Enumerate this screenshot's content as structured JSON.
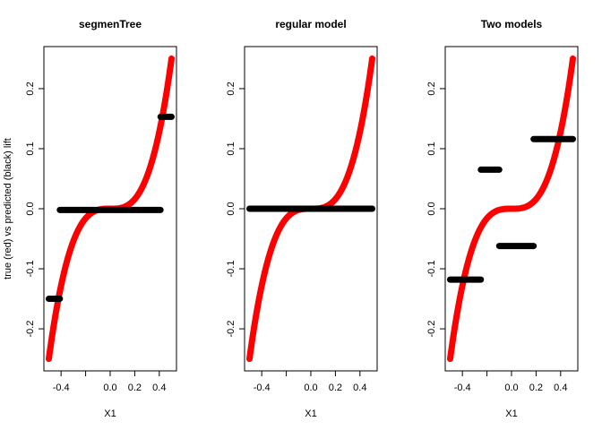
{
  "chart_data": [
    {
      "type": "scatter",
      "title": "segmenTree",
      "xlabel": "X1",
      "ylabel": "true (red) vs predicted (black) lift",
      "xlim": [
        -0.5,
        0.5
      ],
      "ylim": [
        -0.25,
        0.25
      ],
      "x_ticks": [
        -0.4,
        -0.2,
        0.0,
        0.2,
        0.4
      ],
      "x_tick_labels": [
        "-0.4",
        "",
        "0.0",
        "0.2",
        "0.4"
      ],
      "y_ticks": [
        -0.2,
        -0.1,
        0.0,
        0.1,
        0.2
      ],
      "y_tick_labels": [
        "-0.2",
        "-0.1",
        "0.0",
        "0.1",
        "0.2"
      ],
      "series": [
        {
          "name": "true",
          "color": "#ff0000",
          "function": "2*x^3",
          "x_range": [
            -0.5,
            0.5
          ]
        },
        {
          "name": "predicted",
          "color": "#000000",
          "segments": [
            {
              "x": [
                -0.5,
                -0.41
              ],
              "y": -0.15
            },
            {
              "x": [
                -0.41,
                0.41
              ],
              "y": -0.002
            },
            {
              "x": [
                0.41,
                0.5
              ],
              "y": 0.153
            }
          ]
        }
      ]
    },
    {
      "type": "scatter",
      "title": "regular model",
      "xlabel": "X1",
      "ylabel": "",
      "xlim": [
        -0.5,
        0.5
      ],
      "ylim": [
        -0.25,
        0.25
      ],
      "x_ticks": [
        -0.4,
        -0.2,
        0.0,
        0.2,
        0.4
      ],
      "x_tick_labels": [
        "-0.4",
        "",
        "0.0",
        "0.2",
        "0.4"
      ],
      "y_ticks": [
        -0.2,
        -0.1,
        0.0,
        0.1,
        0.2
      ],
      "y_tick_labels": [
        "-0.2",
        "-0.1",
        "0.0",
        "0.1",
        "0.2"
      ],
      "series": [
        {
          "name": "true",
          "color": "#ff0000",
          "function": "2*x^3",
          "x_range": [
            -0.5,
            0.5
          ]
        },
        {
          "name": "predicted",
          "color": "#000000",
          "segments": [
            {
              "x": [
                -0.5,
                0.5
              ],
              "y": 0.0
            }
          ]
        }
      ]
    },
    {
      "type": "scatter",
      "title": "Two models",
      "xlabel": "X1",
      "ylabel": "",
      "xlim": [
        -0.5,
        0.5
      ],
      "ylim": [
        -0.25,
        0.25
      ],
      "x_ticks": [
        -0.4,
        -0.2,
        0.0,
        0.2,
        0.4
      ],
      "x_tick_labels": [
        "-0.4",
        "",
        "0.0",
        "0.2",
        "0.4"
      ],
      "y_ticks": [
        -0.2,
        -0.1,
        0.0,
        0.1,
        0.2
      ],
      "y_tick_labels": [
        "-0.2",
        "-0.1",
        "0.0",
        "0.1",
        "0.2"
      ],
      "series": [
        {
          "name": "true",
          "color": "#ff0000",
          "function": "2*x^3",
          "x_range": [
            -0.5,
            0.5
          ]
        },
        {
          "name": "predicted",
          "color": "#000000",
          "segments": [
            {
              "x": [
                -0.5,
                -0.25
              ],
              "y": -0.118
            },
            {
              "x": [
                -0.25,
                -0.1
              ],
              "y": 0.065
            },
            {
              "x": [
                -0.1,
                0.18
              ],
              "y": -0.062
            },
            {
              "x": [
                0.18,
                0.5
              ],
              "y": 0.116
            }
          ]
        }
      ]
    }
  ]
}
